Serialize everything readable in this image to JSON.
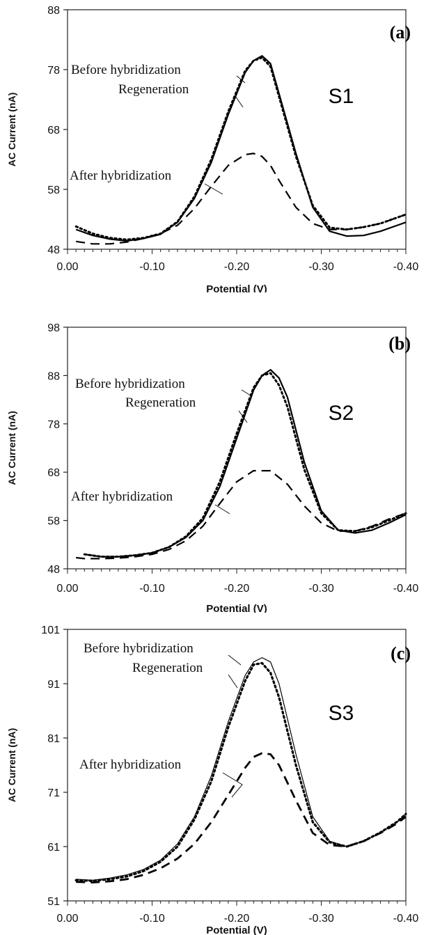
{
  "chart_data": [
    {
      "type": "line",
      "panel_label": "(a)",
      "sample_label": "S1",
      "xlabel": "Potential (V)",
      "ylabel": "AC Current (nA)",
      "xlim": [
        0.0,
        -0.4
      ],
      "ylim": [
        48,
        88
      ],
      "x_ticks": [
        "0.00",
        "-0.10",
        "-0.20",
        "-0.30",
        "-0.40"
      ],
      "y_ticks": [
        "88",
        "78",
        "68",
        "58",
        "48"
      ],
      "annotations": [
        "Before hybridization",
        "Regeneration",
        "After hybridization"
      ],
      "series": [
        {
          "name": "Before hybridization",
          "style": "solid",
          "x": [
            -0.01,
            -0.03,
            -0.05,
            -0.07,
            -0.09,
            -0.11,
            -0.13,
            -0.15,
            -0.17,
            -0.19,
            -0.21,
            -0.22,
            -0.23,
            -0.24,
            -0.25,
            -0.27,
            -0.29,
            -0.31,
            -0.33,
            -0.35,
            -0.37,
            -0.39,
            -0.4
          ],
          "values": [
            51.3,
            50.3,
            49.7,
            49.4,
            49.8,
            50.5,
            52.5,
            56.5,
            62.5,
            70.5,
            77.5,
            79.5,
            80.3,
            79.0,
            74.0,
            64.0,
            55.0,
            51.0,
            50.2,
            50.3,
            51.0,
            52.0,
            52.5
          ]
        },
        {
          "name": "Regeneration",
          "style": "dotted",
          "x": [
            -0.01,
            -0.03,
            -0.05,
            -0.07,
            -0.09,
            -0.11,
            -0.13,
            -0.15,
            -0.17,
            -0.19,
            -0.21,
            -0.22,
            -0.23,
            -0.24,
            -0.25,
            -0.27,
            -0.29,
            -0.31,
            -0.33,
            -0.35,
            -0.37,
            -0.39,
            -0.4
          ],
          "values": [
            51.8,
            50.6,
            49.9,
            49.6,
            49.9,
            50.6,
            52.6,
            56.8,
            63.0,
            71.0,
            77.8,
            79.5,
            80.0,
            78.5,
            73.5,
            63.5,
            55.3,
            51.6,
            51.3,
            51.7,
            52.3,
            53.3,
            53.8
          ]
        },
        {
          "name": "After hybridization",
          "style": "dashed",
          "x": [
            -0.01,
            -0.03,
            -0.05,
            -0.07,
            -0.09,
            -0.11,
            -0.13,
            -0.15,
            -0.17,
            -0.19,
            -0.21,
            -0.22,
            -0.23,
            -0.24,
            -0.25,
            -0.27,
            -0.29,
            -0.31,
            -0.33,
            -0.35,
            -0.37,
            -0.39,
            -0.4
          ],
          "values": [
            49.3,
            48.9,
            48.9,
            49.2,
            49.8,
            50.6,
            52.0,
            54.8,
            58.5,
            62.0,
            63.8,
            64.0,
            63.5,
            62.0,
            59.5,
            55.0,
            52.3,
            51.3,
            51.3,
            51.7,
            52.3,
            53.3,
            53.8
          ]
        }
      ]
    },
    {
      "type": "line",
      "panel_label": "(b)",
      "sample_label": "S2",
      "xlabel": "Potential (V)",
      "ylabel": "AC Current (nA)",
      "xlim": [
        0.0,
        -0.4
      ],
      "ylim": [
        48,
        98
      ],
      "x_ticks": [
        "0.00",
        "-0.10",
        "-0.20",
        "-0.30",
        "-0.40"
      ],
      "y_ticks": [
        "98",
        "88",
        "78",
        "68",
        "58",
        "48"
      ],
      "annotations": [
        "Before hybridization",
        "Regeneration",
        "After hybridization"
      ],
      "series": [
        {
          "name": "Before hybridization",
          "style": "solid",
          "x": [
            -0.02,
            -0.04,
            -0.06,
            -0.08,
            -0.1,
            -0.12,
            -0.14,
            -0.16,
            -0.18,
            -0.2,
            -0.22,
            -0.23,
            -0.24,
            -0.25,
            -0.26,
            -0.28,
            -0.3,
            -0.32,
            -0.34,
            -0.36,
            -0.38,
            -0.4
          ],
          "values": [
            51.0,
            50.5,
            50.5,
            50.8,
            51.3,
            52.5,
            54.5,
            58.0,
            65.0,
            75.0,
            85.0,
            88.0,
            89.2,
            87.5,
            83.5,
            70.0,
            60.0,
            56.0,
            55.4,
            56.0,
            57.5,
            59.2
          ]
        },
        {
          "name": "Regeneration",
          "style": "dotted",
          "x": [
            -0.02,
            -0.04,
            -0.06,
            -0.08,
            -0.1,
            -0.12,
            -0.14,
            -0.16,
            -0.18,
            -0.2,
            -0.22,
            -0.23,
            -0.24,
            -0.25,
            -0.26,
            -0.28,
            -0.3,
            -0.32,
            -0.34,
            -0.36,
            -0.38,
            -0.4
          ],
          "values": [
            51.0,
            50.5,
            50.5,
            50.8,
            51.3,
            52.5,
            54.7,
            58.5,
            66.0,
            76.0,
            85.5,
            88.0,
            88.5,
            86.0,
            81.5,
            68.5,
            59.5,
            56.0,
            55.8,
            56.6,
            58.0,
            59.5
          ]
        },
        {
          "name": "After hybridization",
          "style": "dashed",
          "x": [
            -0.01,
            -0.02,
            -0.04,
            -0.06,
            -0.08,
            -0.1,
            -0.12,
            -0.14,
            -0.16,
            -0.18,
            -0.2,
            -0.22,
            -0.24,
            -0.26,
            -0.28,
            -0.3,
            -0.32,
            -0.34,
            -0.36,
            -0.38,
            -0.4
          ],
          "values": [
            50.3,
            50.1,
            50.1,
            50.2,
            50.5,
            51.0,
            52.0,
            53.8,
            56.8,
            61.5,
            66.0,
            68.3,
            68.3,
            65.5,
            61.0,
            57.5,
            55.8,
            55.8,
            56.8,
            58.3,
            59.5
          ]
        }
      ]
    },
    {
      "type": "line",
      "panel_label": "(c)",
      "sample_label": "S3",
      "xlabel": "Potential (V)",
      "ylabel": "AC Current (nA)",
      "xlim": [
        0.0,
        -0.4
      ],
      "ylim": [
        51,
        101
      ],
      "x_ticks": [
        "0.00",
        "-0.10",
        "-0.20",
        "-0.30",
        "-0.40"
      ],
      "y_ticks": [
        "101",
        "91",
        "81",
        "71",
        "61",
        "51"
      ],
      "annotations": [
        "Before hybridization",
        "Regeneration",
        "After hybridization"
      ],
      "series": [
        {
          "name": "Before hybridization",
          "style": "solid",
          "x": [
            -0.01,
            -0.03,
            -0.05,
            -0.07,
            -0.09,
            -0.11,
            -0.13,
            -0.15,
            -0.17,
            -0.19,
            -0.21,
            -0.22,
            -0.23,
            -0.24,
            -0.25,
            -0.27,
            -0.29,
            -0.31,
            -0.33,
            -0.35,
            -0.37,
            -0.39,
            -0.4
          ],
          "values": [
            55.0,
            54.8,
            55.2,
            55.8,
            56.8,
            58.5,
            61.5,
            66.5,
            74.0,
            84.0,
            92.5,
            95.0,
            95.8,
            95.0,
            91.0,
            78.0,
            66.5,
            62.0,
            61.0,
            62.0,
            63.5,
            65.5,
            67.0
          ]
        },
        {
          "name": "Regeneration",
          "style": "dotted",
          "x": [
            -0.01,
            -0.03,
            -0.05,
            -0.07,
            -0.09,
            -0.11,
            -0.13,
            -0.15,
            -0.17,
            -0.19,
            -0.21,
            -0.22,
            -0.23,
            -0.24,
            -0.25,
            -0.27,
            -0.29,
            -0.31,
            -0.33,
            -0.35,
            -0.37,
            -0.39,
            -0.4
          ],
          "values": [
            54.8,
            54.7,
            55.0,
            55.5,
            56.5,
            58.2,
            61.0,
            66.0,
            73.0,
            83.0,
            91.5,
            94.5,
            94.8,
            93.0,
            88.5,
            76.0,
            65.5,
            61.8,
            61.0,
            62.0,
            63.6,
            65.6,
            67.0
          ]
        },
        {
          "name": "After hybridization",
          "style": "dashed",
          "x": [
            -0.01,
            -0.03,
            -0.05,
            -0.07,
            -0.09,
            -0.11,
            -0.13,
            -0.15,
            -0.17,
            -0.19,
            -0.21,
            -0.22,
            -0.23,
            -0.24,
            -0.25,
            -0.27,
            -0.29,
            -0.31,
            -0.33,
            -0.35,
            -0.37,
            -0.39,
            -0.4
          ],
          "values": [
            54.5,
            54.4,
            54.6,
            55.0,
            55.8,
            57.0,
            58.8,
            61.5,
            65.5,
            70.5,
            75.5,
            77.5,
            78.2,
            78.0,
            76.0,
            69.5,
            63.5,
            61.3,
            61.0,
            62.0,
            63.5,
            65.3,
            66.5
          ]
        }
      ]
    }
  ]
}
